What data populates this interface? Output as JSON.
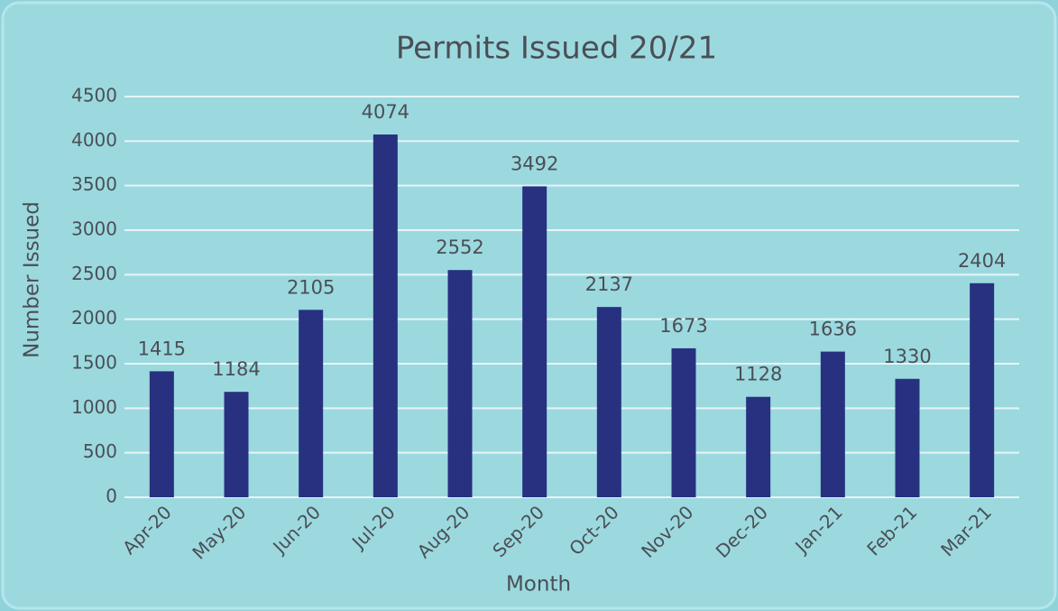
{
  "chart_data": {
    "type": "bar",
    "title": "Permits Issued 20/21",
    "x_label": "Month",
    "y_label": "Number Issued",
    "categories": [
      "Apr-20",
      "May-20",
      "Jun-20",
      "Jul-20",
      "Aug-20",
      "Sep-20",
      "Oct-20",
      "Nov-20",
      "Dec-20",
      "Jan-21",
      "Feb-21",
      "Mar-21"
    ],
    "values": [
      1415,
      1184,
      2105,
      4074,
      2552,
      3492,
      2137,
      1673,
      1128,
      1636,
      1330,
      2404
    ],
    "color": "#283180",
    "ylim": [
      0,
      4500
    ],
    "yticks": [
      0,
      500,
      1000,
      1500,
      2000,
      2500,
      3000,
      3500,
      4000,
      4500
    ],
    "grid": true
  }
}
